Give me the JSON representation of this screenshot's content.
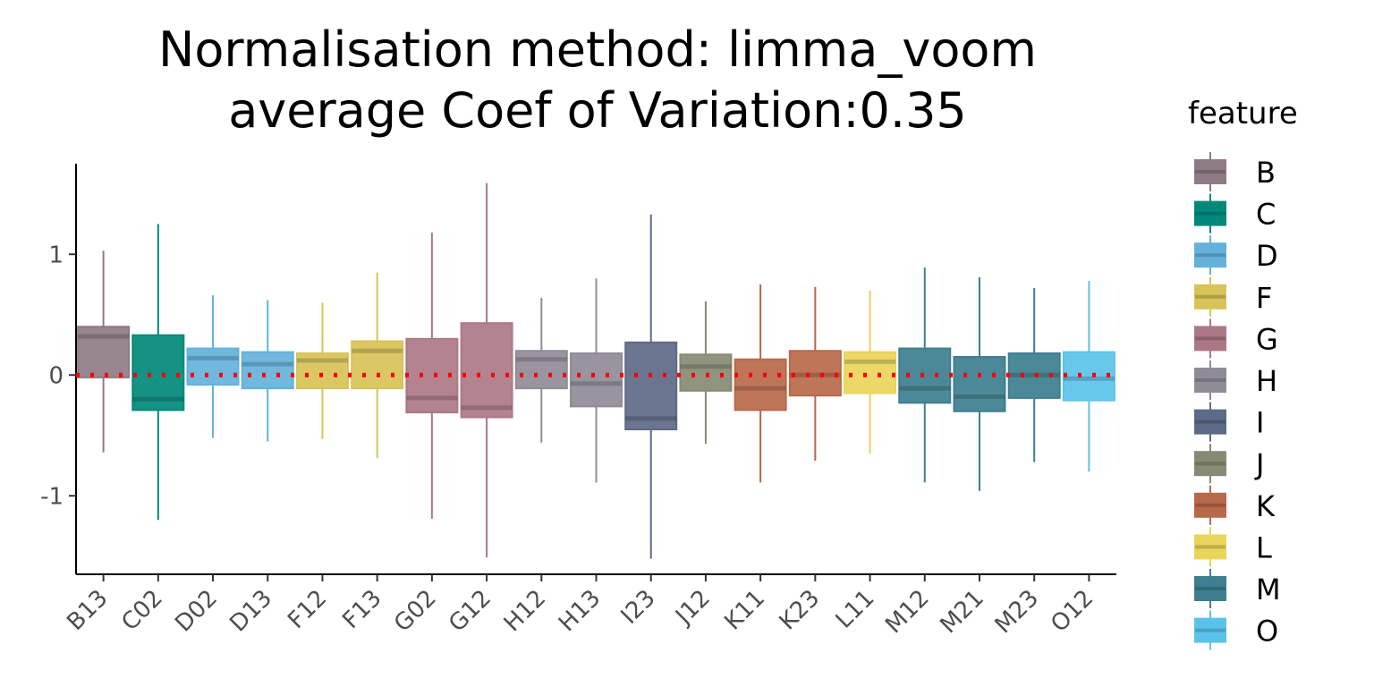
{
  "chart_data": {
    "type": "box",
    "title_lines": [
      "Normalisation method: limma_voom",
      "average Coef of Variation:0.35"
    ],
    "xlabel": "",
    "ylabel": "",
    "ylim": [
      -1.65,
      1.75
    ],
    "yticks": [
      1,
      0,
      -1
    ],
    "ytick_labels": [
      "1",
      "0",
      "-1"
    ],
    "reference_line": {
      "y": 0,
      "color": "#ff0000",
      "style": "dotted"
    },
    "legend_title": "feature",
    "legend": [
      {
        "label": "B",
        "color": "#8e7b85"
      },
      {
        "label": "C",
        "color": "#00897a"
      },
      {
        "label": "D",
        "color": "#64b2db"
      },
      {
        "label": "F",
        "color": "#d8c358"
      },
      {
        "label": "G",
        "color": "#ad7886"
      },
      {
        "label": "H",
        "color": "#8f8c97"
      },
      {
        "label": "I",
        "color": "#5d6a87"
      },
      {
        "label": "J",
        "color": "#878b73"
      },
      {
        "label": "K",
        "color": "#b8694a"
      },
      {
        "label": "L",
        "color": "#e9d55a"
      },
      {
        "label": "M",
        "color": "#3d7f8f"
      },
      {
        "label": "O",
        "color": "#5bc3ea"
      }
    ],
    "boxes": [
      {
        "sample": "B13",
        "feature": "B",
        "min": -0.64,
        "q1": -0.02,
        "median": 0.32,
        "q3": 0.4,
        "max": 1.03
      },
      {
        "sample": "C02",
        "feature": "C",
        "min": -1.2,
        "q1": -0.29,
        "median": -0.2,
        "q3": 0.33,
        "max": 1.25
      },
      {
        "sample": "D02",
        "feature": "D",
        "min": -0.52,
        "q1": -0.08,
        "median": 0.14,
        "q3": 0.22,
        "max": 0.66
      },
      {
        "sample": "D13",
        "feature": "D",
        "min": -0.55,
        "q1": -0.11,
        "median": 0.09,
        "q3": 0.19,
        "max": 0.62
      },
      {
        "sample": "F12",
        "feature": "F",
        "min": -0.53,
        "q1": -0.11,
        "median": 0.12,
        "q3": 0.18,
        "max": 0.6
      },
      {
        "sample": "F13",
        "feature": "F",
        "min": -0.69,
        "q1": -0.11,
        "median": 0.2,
        "q3": 0.28,
        "max": 0.85
      },
      {
        "sample": "G02",
        "feature": "G",
        "min": -1.19,
        "q1": -0.31,
        "median": -0.19,
        "q3": 0.3,
        "max": 1.18
      },
      {
        "sample": "G12",
        "feature": "G",
        "min": -1.51,
        "q1": -0.35,
        "median": -0.27,
        "q3": 0.43,
        "max": 1.59
      },
      {
        "sample": "H12",
        "feature": "H",
        "min": -0.56,
        "q1": -0.11,
        "median": 0.13,
        "q3": 0.2,
        "max": 0.64
      },
      {
        "sample": "H13",
        "feature": "H",
        "min": -0.89,
        "q1": -0.26,
        "median": -0.07,
        "q3": 0.18,
        "max": 0.8
      },
      {
        "sample": "I23",
        "feature": "I",
        "min": -1.52,
        "q1": -0.45,
        "median": -0.36,
        "q3": 0.27,
        "max": 1.33
      },
      {
        "sample": "J12",
        "feature": "J",
        "min": -0.57,
        "q1": -0.13,
        "median": 0.07,
        "q3": 0.17,
        "max": 0.61
      },
      {
        "sample": "K11",
        "feature": "K",
        "min": -0.89,
        "q1": -0.29,
        "median": -0.11,
        "q3": 0.13,
        "max": 0.75
      },
      {
        "sample": "K23",
        "feature": "K",
        "min": -0.71,
        "q1": -0.17,
        "median": 0.0,
        "q3": 0.2,
        "max": 0.73
      },
      {
        "sample": "L11",
        "feature": "L",
        "min": -0.65,
        "q1": -0.15,
        "median": 0.11,
        "q3": 0.19,
        "max": 0.7
      },
      {
        "sample": "M12",
        "feature": "M",
        "min": -0.89,
        "q1": -0.23,
        "median": -0.11,
        "q3": 0.22,
        "max": 0.89
      },
      {
        "sample": "M21",
        "feature": "M",
        "min": -0.96,
        "q1": -0.3,
        "median": -0.18,
        "q3": 0.15,
        "max": 0.81
      },
      {
        "sample": "M23",
        "feature": "M",
        "min": -0.72,
        "q1": -0.19,
        "median": 0.0,
        "q3": 0.18,
        "max": 0.72
      },
      {
        "sample": "O12",
        "feature": "O",
        "min": -0.8,
        "q1": -0.21,
        "median": -0.03,
        "q3": 0.19,
        "max": 0.78
      }
    ]
  }
}
